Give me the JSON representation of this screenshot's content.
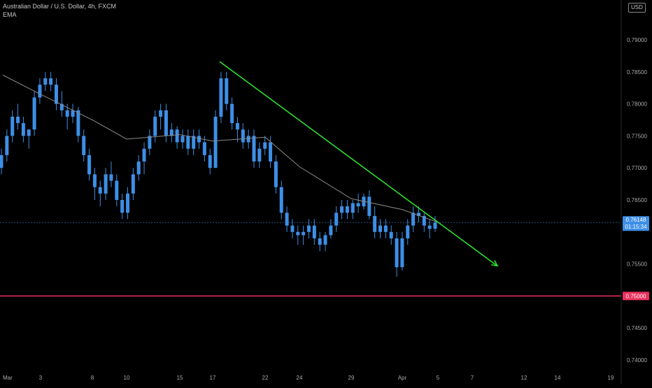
{
  "legend": {
    "symbol": "Australian Dollar / U.S. Dollar, 4h, FXCM",
    "indicator": "EMA"
  },
  "currency_button": "USD",
  "colors": {
    "background": "#000000",
    "candle": "#3d8fe6",
    "ema": "#8a8a8a",
    "trendline": "#2ee82e",
    "support": "#e8315c",
    "axis_text": "#a9a9a9",
    "price_tag": "#3d8fe6"
  },
  "chart_data": {
    "type": "candlestick",
    "title": "Australian Dollar / U.S. Dollar, 4h, FXCM",
    "y_axis": {
      "min": 0.737,
      "max": 0.8015,
      "ticks": [
        "0.79000",
        "0.78500",
        "0.78000",
        "0.77500",
        "0.77000",
        "0.76500",
        "0.75500",
        "0.74500",
        "0.74000"
      ]
    },
    "x_axis": {
      "labels": [
        "Mar",
        "3",
        "8",
        "10",
        "15",
        "17",
        "22",
        "24",
        "29",
        "Apr",
        "5",
        "7",
        "12",
        "14",
        "19"
      ]
    },
    "current_price": {
      "value": 0.76148,
      "label": "0.76148",
      "countdown": "01:15:34"
    },
    "horizontal_line": {
      "value": 0.75,
      "label": "0.75000"
    },
    "trendline": {
      "start": {
        "label": "17",
        "value": 0.7866
      },
      "end": {
        "label": "12",
        "value": 0.7547
      },
      "arrow": true
    },
    "ema": [
      {
        "label": "Mar",
        "value": 0.7845
      },
      {
        "label": "3",
        "value": 0.7815
      },
      {
        "label": "8",
        "value": 0.7775
      },
      {
        "label": "10",
        "value": 0.7745
      },
      {
        "label": "15",
        "value": 0.7752
      },
      {
        "label": "17",
        "value": 0.7742
      },
      {
        "label": "22",
        "value": 0.7748
      },
      {
        "label": "24",
        "value": 0.7702
      },
      {
        "label": "29",
        "value": 0.7652
      },
      {
        "label": "Apr",
        "value": 0.7635
      },
      {
        "label": "5",
        "value": 0.7615
      }
    ],
    "candles": [
      [
        0.77,
        0.773,
        0.769,
        0.772
      ],
      [
        0.772,
        0.776,
        0.771,
        0.775
      ],
      [
        0.775,
        0.779,
        0.774,
        0.778
      ],
      [
        0.778,
        0.78,
        0.776,
        0.777
      ],
      [
        0.777,
        0.778,
        0.774,
        0.775
      ],
      [
        0.775,
        0.776,
        0.773,
        0.776
      ],
      [
        0.776,
        0.782,
        0.775,
        0.781
      ],
      [
        0.781,
        0.784,
        0.78,
        0.783
      ],
      [
        0.783,
        0.785,
        0.782,
        0.784
      ],
      [
        0.784,
        0.785,
        0.782,
        0.783
      ],
      [
        0.783,
        0.784,
        0.779,
        0.78
      ],
      [
        0.78,
        0.782,
        0.778,
        0.779
      ],
      [
        0.779,
        0.78,
        0.776,
        0.778
      ],
      [
        0.778,
        0.78,
        0.777,
        0.779
      ],
      [
        0.779,
        0.7795,
        0.774,
        0.775
      ],
      [
        0.775,
        0.776,
        0.771,
        0.772
      ],
      [
        0.772,
        0.773,
        0.768,
        0.769
      ],
      [
        0.769,
        0.77,
        0.765,
        0.767
      ],
      [
        0.767,
        0.768,
        0.764,
        0.766
      ],
      [
        0.766,
        0.77,
        0.765,
        0.769
      ],
      [
        0.769,
        0.771,
        0.767,
        0.768
      ],
      [
        0.768,
        0.769,
        0.764,
        0.765
      ],
      [
        0.765,
        0.766,
        0.762,
        0.763
      ],
      [
        0.763,
        0.767,
        0.762,
        0.766
      ],
      [
        0.766,
        0.77,
        0.765,
        0.769
      ],
      [
        0.769,
        0.772,
        0.768,
        0.771
      ],
      [
        0.771,
        0.774,
        0.769,
        0.773
      ],
      [
        0.773,
        0.776,
        0.772,
        0.775
      ],
      [
        0.775,
        0.779,
        0.774,
        0.778
      ],
      [
        0.778,
        0.78,
        0.776,
        0.779
      ],
      [
        0.779,
        0.78,
        0.774,
        0.775
      ],
      [
        0.775,
        0.777,
        0.774,
        0.776
      ],
      [
        0.776,
        0.7765,
        0.773,
        0.774
      ],
      [
        0.774,
        0.776,
        0.773,
        0.775
      ],
      [
        0.775,
        0.776,
        0.772,
        0.773
      ],
      [
        0.773,
        0.776,
        0.772,
        0.775
      ],
      [
        0.775,
        0.776,
        0.773,
        0.774
      ],
      [
        0.774,
        0.775,
        0.771,
        0.772
      ],
      [
        0.772,
        0.773,
        0.769,
        0.77
      ],
      [
        0.77,
        0.779,
        0.77,
        0.778
      ],
      [
        0.778,
        0.785,
        0.777,
        0.784
      ],
      [
        0.784,
        0.785,
        0.779,
        0.78
      ],
      [
        0.78,
        0.781,
        0.776,
        0.777
      ],
      [
        0.777,
        0.778,
        0.774,
        0.776
      ],
      [
        0.776,
        0.777,
        0.773,
        0.774
      ],
      [
        0.774,
        0.776,
        0.773,
        0.775
      ],
      [
        0.775,
        0.776,
        0.77,
        0.771
      ],
      [
        0.771,
        0.774,
        0.77,
        0.773
      ],
      [
        0.773,
        0.775,
        0.772,
        0.774
      ],
      [
        0.774,
        0.775,
        0.77,
        0.771
      ],
      [
        0.771,
        0.772,
        0.766,
        0.767
      ],
      [
        0.767,
        0.768,
        0.762,
        0.763
      ],
      [
        0.763,
        0.764,
        0.76,
        0.761
      ],
      [
        0.761,
        0.762,
        0.759,
        0.76
      ],
      [
        0.76,
        0.761,
        0.758,
        0.7595
      ],
      [
        0.7595,
        0.761,
        0.758,
        0.76
      ],
      [
        0.76,
        0.762,
        0.759,
        0.761
      ],
      [
        0.761,
        0.762,
        0.758,
        0.759
      ],
      [
        0.759,
        0.76,
        0.757,
        0.758
      ],
      [
        0.758,
        0.76,
        0.757,
        0.7595
      ],
      [
        0.7595,
        0.762,
        0.759,
        0.761
      ],
      [
        0.761,
        0.764,
        0.76,
        0.763
      ],
      [
        0.763,
        0.765,
        0.762,
        0.764
      ],
      [
        0.764,
        0.765,
        0.762,
        0.763
      ],
      [
        0.763,
        0.765,
        0.762,
        0.7645
      ],
      [
        0.7645,
        0.766,
        0.763,
        0.764
      ],
      [
        0.764,
        0.766,
        0.7635,
        0.7655
      ],
      [
        0.7655,
        0.7665,
        0.762,
        0.7625
      ],
      [
        0.7625,
        0.764,
        0.759,
        0.76
      ],
      [
        0.76,
        0.762,
        0.759,
        0.761
      ],
      [
        0.761,
        0.762,
        0.759,
        0.76
      ],
      [
        0.76,
        0.761,
        0.758,
        0.759
      ],
      [
        0.759,
        0.76,
        0.753,
        0.7545
      ],
      [
        0.7545,
        0.76,
        0.754,
        0.759
      ],
      [
        0.759,
        0.762,
        0.758,
        0.761
      ],
      [
        0.761,
        0.764,
        0.76,
        0.763
      ],
      [
        0.763,
        0.764,
        0.7615,
        0.7625
      ],
      [
        0.7625,
        0.763,
        0.76,
        0.761
      ],
      [
        0.761,
        0.762,
        0.759,
        0.7605
      ],
      [
        0.7605,
        0.7625,
        0.76,
        0.76148
      ]
    ]
  }
}
